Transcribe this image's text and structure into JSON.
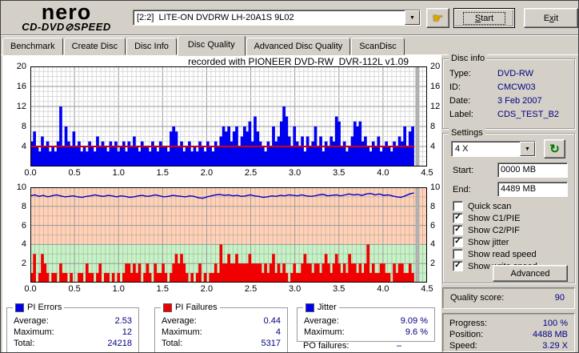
{
  "logo": {
    "line1": "nero",
    "line2": "CD-DVD⊘SPEED"
  },
  "header": {
    "drive": "[2:2]  LITE-ON DVDRW LH-20A1S 9L02",
    "start": {
      "label": "Start",
      "underline": "S"
    },
    "exit": {
      "label": "Exit",
      "underline": "x"
    }
  },
  "tabs": [
    {
      "label": "Benchmark",
      "active": false
    },
    {
      "label": "Create Disc",
      "active": false
    },
    {
      "label": "Disc Info",
      "active": false
    },
    {
      "label": "Disc Quality",
      "active": true
    },
    {
      "label": "Advanced Disc Quality",
      "active": false
    },
    {
      "label": "ScanDisc",
      "active": false
    }
  ],
  "chart_data": [
    {
      "type": "bar",
      "name": "PI Errors (C1/PIE)",
      "title": "recorded with PIONEER DVD-RW  DVR-112L v1.09",
      "x_range": [
        0,
        4.5
      ],
      "x_data_end": 4.35,
      "x_ticks": [
        "0.0",
        "0.5",
        "1.0",
        "1.5",
        "2.0",
        "2.5",
        "3.0",
        "3.5",
        "4.0",
        "4.5"
      ],
      "y_range": [
        0,
        20
      ],
      "y_ticks": [
        20,
        16,
        12,
        8,
        4
      ],
      "grid": true,
      "values": [
        5,
        7,
        4,
        3,
        6,
        4,
        5,
        3,
        4,
        3,
        5,
        12,
        4,
        8,
        5,
        4,
        7,
        4,
        5,
        3,
        4,
        3,
        5,
        4,
        3,
        6,
        4,
        5,
        4,
        3,
        5,
        4,
        5,
        3,
        4,
        5,
        3,
        5,
        4,
        6,
        4,
        3,
        5,
        4,
        4,
        3,
        5,
        4,
        3,
        5,
        4,
        4,
        3,
        7,
        8,
        7,
        4,
        5,
        3,
        4,
        5,
        3,
        4,
        3,
        5,
        4,
        3,
        5,
        4,
        3,
        5,
        4,
        6,
        8,
        7,
        8,
        5,
        7,
        8,
        4,
        6,
        8,
        7,
        9,
        5,
        10,
        7,
        5,
        4,
        3,
        5,
        4,
        8,
        5,
        6,
        9,
        12,
        10,
        6,
        4,
        8,
        5,
        4,
        6,
        3,
        6,
        4,
        5,
        8,
        4,
        6,
        3,
        5,
        4,
        6,
        5,
        10,
        9,
        4,
        5,
        3,
        4,
        6,
        9,
        8,
        9,
        5,
        6,
        4,
        3,
        5,
        4,
        6,
        3,
        4,
        5,
        4,
        3,
        5,
        4,
        6,
        5,
        8,
        4,
        7,
        8
      ],
      "overlay_line": {
        "name": "write speed (4X)",
        "value": 4
      }
    },
    {
      "type": "bar+line",
      "name": "PI Failures & Jitter",
      "x_range": [
        0,
        4.5
      ],
      "x_data_end": 4.35,
      "x_ticks": [
        "0.0",
        "0.5",
        "1.0",
        "1.5",
        "2.0",
        "2.5",
        "3.0",
        "3.5",
        "4.0",
        "4.5"
      ],
      "y_range": [
        0,
        10
      ],
      "y_ticks": [
        10,
        8,
        6,
        4,
        2
      ],
      "grid": true,
      "zones": [
        {
          "from": 4,
          "to": 10,
          "color_key": "zone_bad"
        },
        {
          "from": 0,
          "to": 4,
          "color_key": "zone_good"
        }
      ],
      "bars": {
        "name": "PI Failures (C2/PIF)",
        "values": [
          1,
          3,
          0,
          1,
          3,
          2,
          1,
          0,
          1,
          1,
          0,
          2,
          1,
          1,
          0,
          1,
          0,
          0,
          1,
          1,
          0,
          2,
          1,
          1,
          0,
          1,
          2,
          0,
          1,
          1,
          0,
          1,
          0,
          1,
          0,
          1,
          2,
          2,
          1,
          2,
          1,
          2,
          0,
          1,
          2,
          1,
          0,
          2,
          1,
          1,
          2,
          1,
          0,
          1,
          2,
          3,
          2,
          3,
          2,
          1,
          0,
          1,
          0,
          1,
          2,
          0,
          1,
          0,
          1,
          1,
          2,
          1,
          4,
          2,
          2,
          3,
          2,
          2,
          3,
          2,
          2,
          2,
          2,
          3,
          2,
          2,
          2,
          2,
          1,
          2,
          1,
          2,
          3,
          1,
          2,
          1,
          2,
          1,
          0,
          1,
          2,
          1,
          1,
          2,
          3,
          2,
          2,
          1,
          2,
          2,
          1,
          2,
          3,
          2,
          1,
          2,
          3,
          2,
          1,
          2,
          1,
          3,
          2,
          2,
          1,
          2,
          1,
          2,
          4,
          1,
          2,
          1,
          1,
          2,
          2,
          1,
          1,
          0,
          2,
          1,
          2,
          2,
          1,
          1,
          2,
          1
        ]
      },
      "line": {
        "name": "Jitter (%)",
        "values": [
          9.1,
          9.2,
          9.05,
          9.15,
          9.0,
          9.1,
          9.2,
          9.1,
          9.0,
          9.05,
          9.1,
          9.0,
          8.95,
          9.05,
          9.1,
          9.2,
          9.1,
          9.05,
          9.15,
          9.1,
          9.0,
          9.1,
          9.05,
          8.95,
          9.0,
          9.1,
          9.15,
          9.05,
          9.1,
          9.2,
          9.1,
          9.0,
          9.05,
          9.15,
          9.1,
          9.05,
          9.0,
          9.1,
          9.05,
          8.9,
          8.85,
          9.0,
          9.1,
          9.2,
          9.25,
          9.15,
          9.2,
          9.1,
          9.15,
          9.05,
          9.1,
          9.2,
          9.1,
          9.05,
          8.95,
          9.0,
          9.1,
          9.05,
          9.15,
          9.1,
          9.2,
          9.15,
          9.1,
          9.2,
          9.1,
          9.05,
          9.1,
          9.2,
          9.25,
          9.1,
          9.15,
          9.2,
          9.1,
          9.2,
          9.3,
          9.2,
          9.25,
          9.15,
          9.3,
          9.35,
          9.2,
          9.3,
          9.15,
          9.2,
          9.1,
          9.0,
          8.95,
          9.1,
          9.3,
          9.4
        ]
      }
    }
  ],
  "disc_info": {
    "title": "Disc info",
    "rows": [
      [
        "Type:",
        "DVD-RW"
      ],
      [
        "ID:",
        "CMCW03"
      ],
      [
        "Date:",
        "3 Feb 2007"
      ],
      [
        "Label:",
        "CDS_TEST_B2"
      ]
    ]
  },
  "settings": {
    "title": "Settings",
    "speed_selected": "4 X",
    "start_label": "Start:",
    "start_value": "0000 MB",
    "end_label": "End:",
    "end_value": "4489 MB",
    "checkboxes": [
      {
        "label": "Quick scan",
        "checked": false
      },
      {
        "label": "Show C1/PIE",
        "checked": true
      },
      {
        "label": "Show C2/PIF",
        "checked": true
      },
      {
        "label": "Show jitter",
        "checked": true
      },
      {
        "label": "Show read speed",
        "checked": false
      },
      {
        "label": "Show write speed",
        "checked": true
      }
    ],
    "advanced_label": "Advanced"
  },
  "quality": {
    "label": "Quality score:",
    "value": "90"
  },
  "progress": {
    "rows": [
      [
        "Progress:",
        "100 %"
      ],
      [
        "Position:",
        "4488 MB"
      ],
      [
        "Speed:",
        "3.29 X"
      ]
    ]
  },
  "stats_boxes": [
    {
      "name": "pi-errors",
      "title": "PI Errors",
      "swatch": "#0000f0",
      "rows": [
        [
          "Average:",
          "2.53"
        ],
        [
          "Maximum:",
          "12"
        ],
        [
          "Total:",
          "24218"
        ]
      ]
    },
    {
      "name": "pi-failures",
      "title": "PI Failures",
      "swatch": "#f00000",
      "rows": [
        [
          "Average:",
          "0.44"
        ],
        [
          "Maximum:",
          "4"
        ],
        [
          "Total:",
          "5317"
        ]
      ]
    },
    {
      "name": "jitter",
      "title": "Jitter",
      "swatch": "#0000f0",
      "rows": [
        [
          "Average:",
          "9.09 %"
        ],
        [
          "Maximum:",
          "9.6 %"
        ]
      ]
    }
  ],
  "po_failures": {
    "label": "PO failures:",
    "value": "–"
  },
  "colors": {
    "accent_navy": "#000080",
    "pie_bar": "#0000f0",
    "pif_bar": "#f00000",
    "jitter_line": "#0000d0",
    "write_speed_line": "#d40000",
    "zone_bad": "#ffd2b8",
    "zone_good": "#c6f2c6",
    "grid_minor": "#dadada",
    "grid_major": "#999999",
    "scan_end_marker": "#b0b0b0"
  }
}
